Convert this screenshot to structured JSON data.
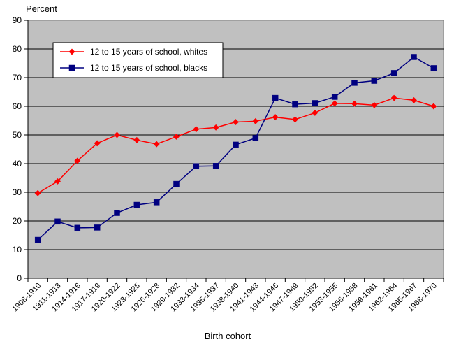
{
  "chart_data": {
    "type": "line",
    "ylabel": "Percent",
    "xlabel": "Birth cohort",
    "ylim": [
      0,
      90
    ],
    "yticks": [
      0,
      10,
      20,
      30,
      40,
      50,
      60,
      70,
      80,
      90
    ],
    "grid": "horizontal",
    "legend_position": "top-left",
    "background_color": "#c0c0c0",
    "categories": [
      "1908-1910",
      "1911-1913",
      "1914-1916",
      "1917-1919",
      "1920-1922",
      "1923-1925",
      "1926-1928",
      "1929-1932",
      "1933-1934",
      "1935-1937",
      "1938-1940",
      "1941-1943",
      "1944-1946",
      "1947-1949",
      "1950-1952",
      "1953-1955",
      "1956-1958",
      "1959-1961",
      "1962-1964",
      "1965-1967",
      "1968-1970"
    ],
    "series": [
      {
        "name": "12 to 15 years of school, whites",
        "color": "#ff0000",
        "marker": "diamond",
        "values": [
          29.7,
          33.8,
          41.0,
          47.1,
          50.0,
          48.2,
          46.8,
          49.4,
          52.0,
          52.6,
          54.5,
          54.8,
          56.2,
          55.4,
          57.7,
          61.0,
          60.9,
          60.4,
          62.9,
          62.1,
          60.0
        ]
      },
      {
        "name": "12 to 15 years of school, blacks",
        "color": "#000080",
        "marker": "square",
        "values": [
          13.4,
          19.8,
          17.6,
          17.7,
          22.8,
          25.6,
          26.5,
          32.9,
          39.1,
          39.2,
          46.6,
          48.9,
          62.9,
          60.7,
          61.1,
          63.3,
          68.2,
          68.9,
          71.6,
          77.2,
          73.3
        ]
      }
    ]
  }
}
